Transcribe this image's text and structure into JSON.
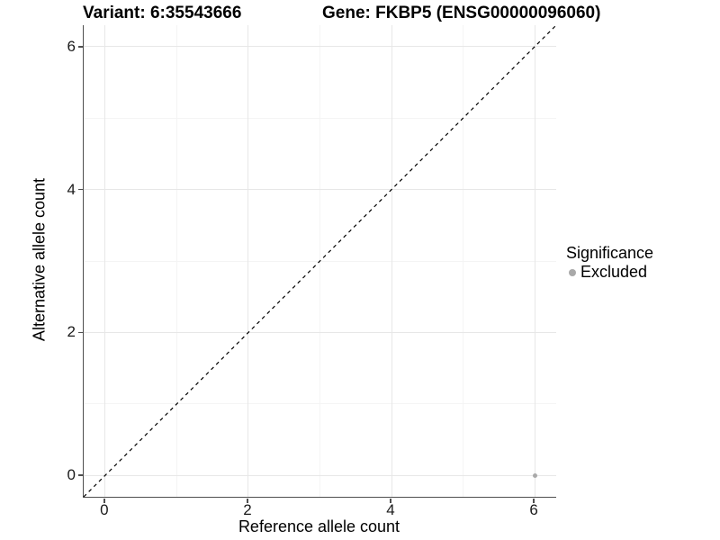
{
  "chart_data": {
    "type": "scatter",
    "titles": {
      "variant": "Variant: 6:35543666",
      "gene": "Gene: FKBP5 (ENSG00000096060)"
    },
    "xlabel": "Reference allele count",
    "ylabel": "Alternative allele count",
    "xlim": [
      -0.3,
      6.3
    ],
    "ylim": [
      -0.3,
      6.3
    ],
    "xticks": [
      0,
      2,
      4,
      6
    ],
    "yticks": [
      0,
      2,
      4,
      6
    ],
    "minor_ticks": [
      1,
      3,
      5
    ],
    "grid": "major and minor gridlines on white panel",
    "reference_line": {
      "type": "identity y=x",
      "style": "dashed",
      "color": "#000000"
    },
    "series": [
      {
        "name": "Excluded",
        "color": "#a9a9a9",
        "points": [
          {
            "x": 6,
            "y": 0
          }
        ]
      }
    ],
    "legend": {
      "title": "Significance",
      "position": "right",
      "items": [
        {
          "label": "Excluded",
          "color": "#a9a9a9"
        }
      ]
    }
  },
  "style": {
    "grid_major_color": "#e7e7e7",
    "grid_minor_color": "#f4f4f4",
    "axis_line_color": "#4f4f4f",
    "background": "#ffffff"
  }
}
